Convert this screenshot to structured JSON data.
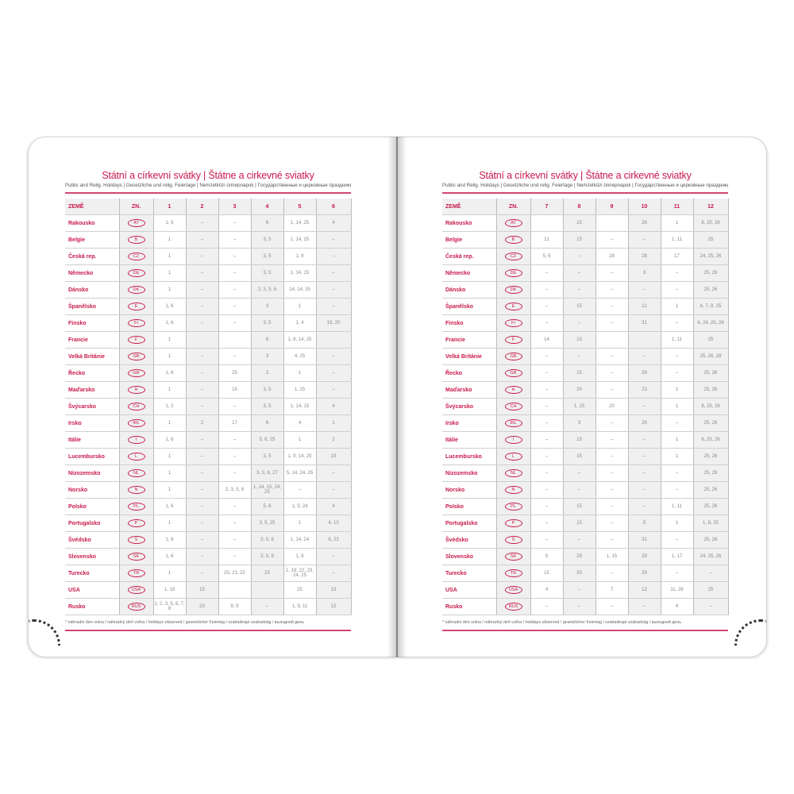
{
  "title": "Státní a církevní svátky | Štátne a cirkevné sviatky",
  "subtitle": "Public and Relig. Holidays | Gesetzliche und relig. Feiertage | Nemzetközi ünnepnapok | Государственные и церковные праздники",
  "footnote": "* náhradní den volna / náhradný deň voľna / holidays observed / gesetzlicher Feiertag / szabadnapi szabadság / выходной день",
  "accent_color": "#c8194b",
  "header": {
    "country": "ZEMĚ",
    "code": "ZN."
  },
  "countries": [
    {
      "name": "Rakousko",
      "code": "AT"
    },
    {
      "name": "Belgie",
      "code": "B"
    },
    {
      "name": "Česká rep.",
      "code": "CZ"
    },
    {
      "name": "Německo",
      "code": "DE"
    },
    {
      "name": "Dánsko",
      "code": "DK"
    },
    {
      "name": "Španělsko",
      "code": "E"
    },
    {
      "name": "Finsko",
      "code": "FI"
    },
    {
      "name": "Francie",
      "code": "F"
    },
    {
      "name": "Velká Británie",
      "code": "GB"
    },
    {
      "name": "Řecko",
      "code": "GR"
    },
    {
      "name": "Maďarsko",
      "code": "H"
    },
    {
      "name": "Švýcarsko",
      "code": "CH"
    },
    {
      "name": "Irsko",
      "code": "IRL"
    },
    {
      "name": "Itálie",
      "code": "I"
    },
    {
      "name": "Lucembursko",
      "code": "L"
    },
    {
      "name": "Nizozemsko",
      "code": "NL"
    },
    {
      "name": "Norsko",
      "code": "N"
    },
    {
      "name": "Polsko",
      "code": "PL"
    },
    {
      "name": "Portugalsko",
      "code": "P"
    },
    {
      "name": "Švédsko",
      "code": "S"
    },
    {
      "name": "Slovensko",
      "code": "SK"
    },
    {
      "name": "Turecko",
      "code": "TR"
    },
    {
      "name": "USA",
      "code": "USA"
    },
    {
      "name": "Rusko",
      "code": "RUS"
    }
  ],
  "left_page": {
    "months": [
      "1",
      "2",
      "3",
      "4",
      "5",
      "6"
    ],
    "rows": [
      [
        "1, 6",
        "–",
        "–",
        "6",
        "1, 14, 25",
        "4"
      ],
      [
        "1",
        "–",
        "–",
        "3, 5",
        "1, 14, 25",
        "–"
      ],
      [
        "1",
        "–",
        "–",
        "3, 5",
        "1, 8",
        "–"
      ],
      [
        "1",
        "–",
        "–",
        "3, 5",
        "1, 14, 15",
        "–"
      ],
      [
        "1",
        "–",
        "–",
        "2, 3, 5, 6",
        "14, 14, 25",
        "–"
      ],
      [
        "1, 6",
        "–",
        "–",
        "3",
        "1",
        "–"
      ],
      [
        "1, 6",
        "–",
        "–",
        "3, 5",
        "1, 4",
        "19, 20"
      ],
      [
        "1",
        "",
        "",
        "6",
        "1, 8, 14, 25",
        ""
      ],
      [
        "1",
        "–",
        "–",
        "3",
        "4, 25",
        "–"
      ],
      [
        "1, 6",
        "–",
        "25",
        "2",
        "1",
        "–"
      ],
      [
        "1",
        "–",
        "15",
        "3, 5",
        "1, 25",
        "–"
      ],
      [
        "1, 2",
        "–",
        "–",
        "3, 5",
        "1, 14, 15",
        "4"
      ],
      [
        "1",
        "2",
        "17",
        "6",
        "4",
        "1"
      ],
      [
        "1, 6",
        "–",
        "–",
        "5, 6, 25",
        "1",
        "2"
      ],
      [
        "1",
        "–",
        "–",
        "3, 5",
        "1, 9, 14, 25",
        "23"
      ],
      [
        "1",
        "–",
        "–",
        "3, 5, 6, 27",
        "5, 14, 24, 25",
        "–"
      ],
      [
        "1",
        "–",
        "2, 3, 5, 6",
        "1, 14, 15, 24, 25",
        "–",
        "–"
      ],
      [
        "1, 6",
        "–",
        "–",
        "5, 6",
        "1, 3, 24",
        "4"
      ],
      [
        "1",
        "–",
        "–",
        "3, 5, 25",
        "1",
        "4, 10"
      ],
      [
        "1, 6",
        "–",
        "–",
        "3, 5, 6",
        "1, 14, 24",
        "6, 23"
      ],
      [
        "1, 6",
        "–",
        "–",
        "3, 5, 6",
        "1, 8",
        "–"
      ],
      [
        "1",
        "–",
        "20, 21, 22",
        "23",
        "1, 19, 22, 23, 24, 25",
        "–"
      ],
      [
        "1, 18",
        "15",
        "",
        "",
        "25",
        "13"
      ],
      [
        "1, 2, 3, 5, 6, 7, 8",
        "23",
        "8, 9",
        "–",
        "1, 9, 11",
        "12"
      ]
    ]
  },
  "right_page": {
    "months": [
      "7",
      "8",
      "9",
      "10",
      "11",
      "12"
    ],
    "rows": [
      [
        "",
        "15",
        "",
        "26",
        "1",
        "8, 25, 26"
      ],
      [
        "21",
        "15",
        "–",
        "–",
        "1, 11",
        "25"
      ],
      [
        "5, 6",
        "–",
        "28",
        "28",
        "17",
        "24, 25, 26"
      ],
      [
        "–",
        "–",
        "–",
        "3",
        "–",
        "25, 26"
      ],
      [
        "–",
        "–",
        "–",
        "–",
        "–",
        "25, 26"
      ],
      [
        "–",
        "15",
        "–",
        "12",
        "1",
        "6, 7, 8, 25"
      ],
      [
        "–",
        "–",
        "–",
        "31",
        "–",
        "6, 24, 25, 26"
      ],
      [
        "14",
        "15",
        "",
        "",
        "1, 11",
        "25"
      ],
      [
        "–",
        "–",
        "–",
        "–",
        "–",
        "25, 26, 28"
      ],
      [
        "–",
        "15",
        "–",
        "28",
        "–",
        "25, 26"
      ],
      [
        "–",
        "20",
        "–",
        "23",
        "1",
        "25, 26"
      ],
      [
        "–",
        "1, 15",
        "20",
        "–",
        "1",
        "8, 25, 26"
      ],
      [
        "–",
        "3",
        "–",
        "26",
        "–",
        "25, 26"
      ],
      [
        "–",
        "15",
        "–",
        "–",
        "1",
        "8, 25, 26"
      ],
      [
        "–",
        "15",
        "–",
        "–",
        "1",
        "25, 26"
      ],
      [
        "–",
        "–",
        "–",
        "–",
        "–",
        "25, 26"
      ],
      [
        "–",
        "–",
        "–",
        "–",
        "–",
        "25, 26"
      ],
      [
        "–",
        "15",
        "–",
        "–",
        "1, 11",
        "25, 26"
      ],
      [
        "–",
        "15",
        "–",
        "5",
        "1",
        "1, 8, 25"
      ],
      [
        "–",
        "–",
        "–",
        "31",
        "–",
        "25, 26"
      ],
      [
        "5",
        "29",
        "1, 15",
        "28",
        "1, 17",
        "24, 25, 26"
      ],
      [
        "15",
        "30",
        "–",
        "29",
        "–",
        "–"
      ],
      [
        "4",
        "–",
        "7",
        "12",
        "11, 28",
        "25"
      ],
      [
        "–",
        "–",
        "–",
        "–",
        "4",
        "–"
      ]
    ]
  }
}
